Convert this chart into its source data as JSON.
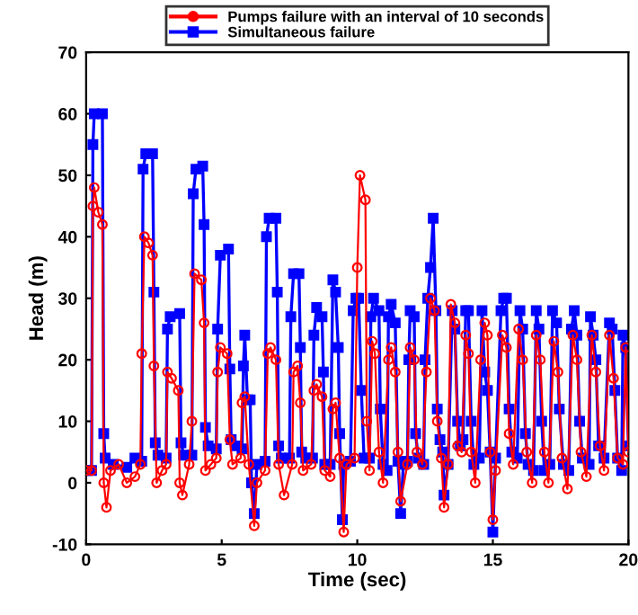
{
  "chart_data": {
    "type": "line",
    "xlabel": "Time (sec)",
    "ylabel": "Head (m)",
    "xlim": [
      0,
      20
    ],
    "xticks": [
      0,
      5,
      10,
      15,
      20
    ],
    "ylim": [
      -10,
      70
    ],
    "yticks": [
      -10,
      0,
      10,
      20,
      30,
      40,
      50,
      60,
      70
    ],
    "grid": false,
    "legend": "top",
    "line_style": "solid",
    "series": [
      {
        "name": "Pumps failure with an interval of 10 seconds",
        "color": "#ff0000",
        "marker": "circle",
        "x": [
          0,
          0.2,
          0.25,
          0.3,
          0.45,
          0.6,
          0.65,
          0.75,
          0.9,
          1.2,
          1.5,
          1.8,
          2.0,
          2.05,
          2.15,
          2.3,
          2.45,
          2.5,
          2.6,
          2.8,
          2.95,
          3.0,
          3.15,
          3.4,
          3.45,
          3.55,
          3.8,
          3.9,
          4.0,
          4.25,
          4.35,
          4.4,
          4.6,
          4.8,
          4.85,
          4.95,
          5.2,
          5.3,
          5.4,
          5.7,
          5.75,
          5.85,
          6.0,
          6.2,
          6.3,
          6.6,
          6.7,
          6.8,
          7.0,
          7.1,
          7.3,
          7.6,
          7.65,
          7.8,
          7.9,
          8.0,
          8.3,
          8.4,
          8.5,
          8.7,
          8.8,
          9.0,
          9.1,
          9.2,
          9.35,
          9.5,
          9.6,
          9.9,
          10.0,
          10.1,
          10.3,
          10.35,
          10.45,
          10.55,
          10.65,
          10.8,
          10.95,
          11.15,
          11.25,
          11.4,
          11.5,
          11.6,
          11.85,
          11.95,
          12.1,
          12.2,
          12.4,
          12.55,
          12.7,
          12.85,
          12.95,
          13.1,
          13.2,
          13.35,
          13.45,
          13.6,
          13.7,
          13.85,
          14.0,
          14.1,
          14.2,
          14.35,
          14.55,
          14.7,
          14.8,
          14.9,
          15.0,
          15.1,
          15.35,
          15.5,
          15.6,
          15.75,
          15.95,
          16.1,
          16.25,
          16.45,
          16.6,
          16.75,
          16.9,
          17.05,
          17.25,
          17.4,
          17.55,
          17.75,
          17.95,
          18.1,
          18.25,
          18.45,
          18.65,
          18.8,
          18.95,
          19.1,
          19.3,
          19.45,
          19.6,
          19.8,
          19.9,
          20
        ],
        "values": [
          2,
          2,
          45,
          48,
          44,
          42,
          0,
          -4,
          2,
          3,
          0,
          1,
          3,
          21,
          40,
          39,
          37,
          19,
          0,
          2,
          3,
          18,
          17,
          15,
          0,
          -2,
          3,
          10,
          34,
          33,
          26,
          2,
          3,
          4,
          18,
          22,
          21,
          7,
          3,
          4,
          13,
          14,
          3,
          -7,
          0,
          2,
          21,
          22,
          20,
          3,
          -2,
          3,
          18,
          19,
          13,
          2,
          3,
          15,
          16,
          14,
          2,
          1,
          12,
          13,
          4,
          -8,
          3,
          4,
          35,
          50,
          46,
          10,
          2,
          23,
          21,
          5,
          0,
          20,
          22,
          18,
          5,
          -3,
          3,
          22,
          20,
          5,
          3,
          18,
          30,
          28,
          10,
          4,
          -4,
          3,
          29,
          26,
          6,
          5,
          24,
          21,
          5,
          0,
          20,
          26,
          24,
          5,
          -6,
          2,
          24,
          22,
          8,
          3,
          25,
          20,
          5,
          0,
          24,
          20,
          5,
          0,
          23,
          18,
          4,
          -1,
          24,
          20,
          5,
          1,
          24,
          18,
          6,
          2,
          24,
          17,
          4,
          3,
          22,
          5
        ]
      },
      {
        "name": "Simultaneous failure",
        "color": "#0000ff",
        "marker": "square",
        "x": [
          0,
          0.2,
          0.25,
          0.3,
          0.6,
          0.65,
          0.7,
          1.0,
          1.5,
          1.8,
          2.05,
          2.1,
          2.2,
          2.45,
          2.5,
          2.55,
          2.65,
          2.95,
          3.0,
          3.1,
          3.45,
          3.5,
          3.6,
          3.9,
          3.95,
          4.05,
          4.3,
          4.35,
          4.4,
          4.5,
          4.8,
          4.85,
          4.95,
          5.25,
          5.3,
          5.35,
          5.5,
          5.75,
          5.8,
          5.85,
          5.95,
          6.05,
          6.1,
          6.2,
          6.3,
          6.6,
          6.65,
          6.75,
          7.0,
          7.05,
          7.1,
          7.2,
          7.5,
          7.55,
          7.65,
          7.85,
          7.9,
          7.95,
          8.1,
          8.35,
          8.4,
          8.5,
          8.7,
          8.75,
          8.8,
          9.0,
          9.1,
          9.2,
          9.3,
          9.35,
          9.45,
          9.5,
          9.75,
          9.85,
          9.95,
          10.05,
          10.15,
          10.25,
          10.45,
          10.5,
          10.6,
          10.8,
          10.85,
          10.95,
          11.1,
          11.15,
          11.25,
          11.4,
          11.5,
          11.6,
          11.7,
          11.85,
          11.9,
          11.95,
          12.1,
          12.15,
          12.25,
          12.45,
          12.5,
          12.6,
          12.7,
          12.8,
          12.9,
          12.95,
          13.05,
          13.15,
          13.2,
          13.35,
          13.5,
          13.6,
          13.7,
          13.8,
          13.9,
          14.0,
          14.1,
          14.2,
          14.3,
          14.5,
          14.6,
          14.7,
          14.8,
          14.9,
          15.0,
          15.1,
          15.3,
          15.4,
          15.5,
          15.6,
          15.7,
          15.9,
          16.0,
          16.1,
          16.2,
          16.3,
          16.5,
          16.6,
          16.7,
          16.8,
          16.9,
          17.1,
          17.2,
          17.35,
          17.45,
          17.6,
          17.8,
          17.9,
          18.0,
          18.1,
          18.2,
          18.3,
          18.55,
          18.6,
          18.7,
          18.8,
          18.9,
          19.1,
          19.3,
          19.4,
          19.5,
          19.6,
          19.75,
          19.8,
          19.9,
          20
        ],
        "values": [
          2,
          2,
          55,
          60,
          60,
          8,
          4,
          3,
          2.5,
          4,
          3.5,
          51,
          53.5,
          53.5,
          31,
          6.5,
          4.5,
          4,
          25,
          27,
          27.5,
          6.5,
          4.5,
          4.5,
          47,
          51,
          51.5,
          42,
          9,
          6,
          5.5,
          25,
          37,
          38,
          18.5,
          7,
          6,
          5.5,
          19,
          24,
          13.5,
          13.5,
          0,
          -5,
          3,
          3.5,
          40,
          43,
          43,
          31,
          6,
          4,
          4,
          27,
          34,
          34,
          22,
          5,
          4,
          4,
          24,
          28.5,
          27,
          18,
          3,
          3,
          33,
          31,
          22,
          8,
          -6,
          3,
          3.5,
          28,
          30,
          30,
          15,
          4,
          4,
          27,
          30,
          28,
          12,
          3,
          2,
          27,
          29,
          26,
          3.5,
          -5,
          3,
          3.5,
          20,
          28,
          27,
          8,
          4,
          3,
          20,
          30,
          35,
          43,
          28,
          12,
          7,
          5,
          -2,
          3,
          28,
          25,
          10,
          6,
          7,
          28,
          28,
          10,
          3,
          4,
          28,
          18,
          15,
          5,
          -8,
          4,
          28,
          30,
          30,
          12,
          5,
          4,
          28,
          25,
          8,
          3,
          2,
          28,
          25,
          10,
          2,
          3,
          28,
          26,
          12,
          3,
          2,
          25,
          28,
          24,
          10,
          4,
          3,
          27,
          24,
          20,
          6,
          4,
          26,
          25,
          15,
          4,
          2,
          24,
          22,
          6
        ]
      }
    ]
  }
}
